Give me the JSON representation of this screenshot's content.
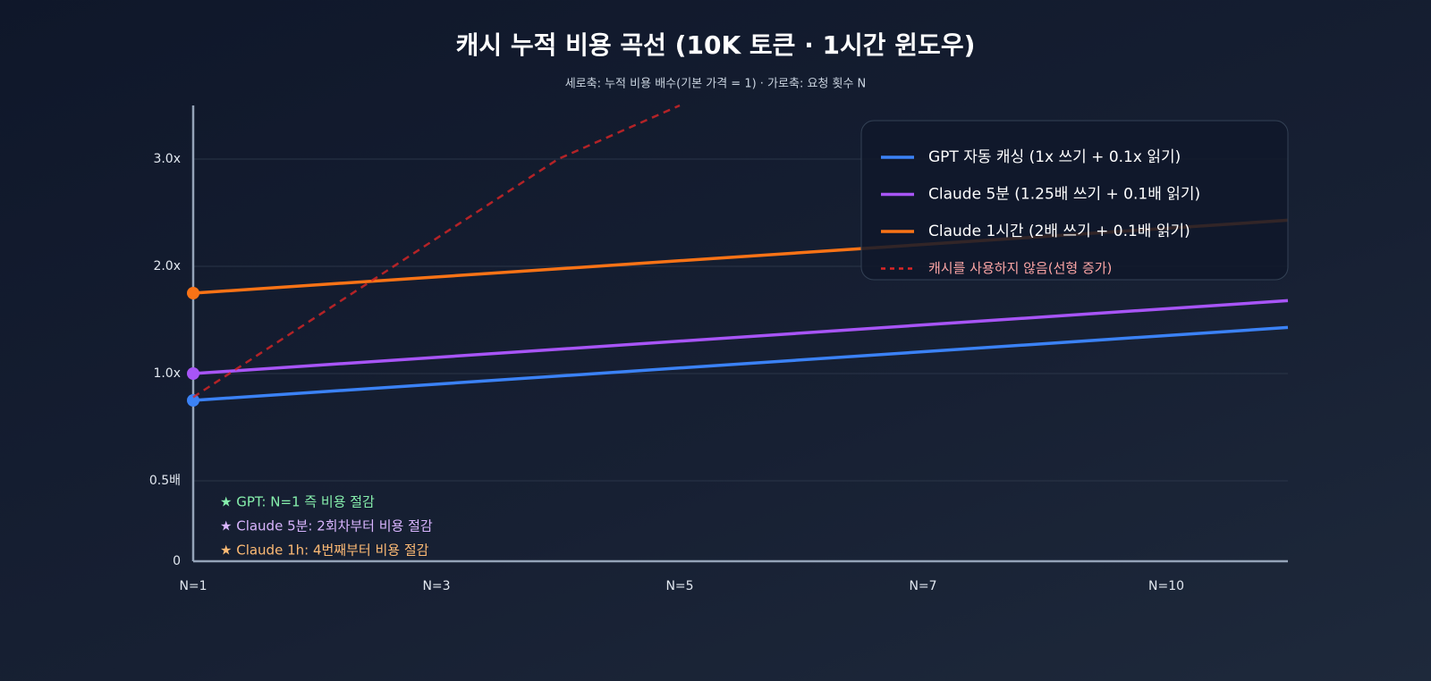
{
  "chart_data": {
    "type": "line",
    "title": "캐시 누적 비용 곡선 (10K 토큰 · 1시간 윈도우)",
    "subtitle": "세로축: 누적 비용 배수(기본 가격 = 1) · 가로축: 요청 횟수 N",
    "xlim": [
      1,
      11.5
    ],
    "xticks": [
      {
        "value": 1,
        "label": "N=1"
      },
      {
        "value": 3,
        "label": "N=3"
      },
      {
        "value": 5,
        "label": "N=5"
      },
      {
        "value": 7,
        "label": "N=7"
      },
      {
        "value": 10,
        "label": "N=10"
      }
    ],
    "ylim": [
      0,
      3.5
    ],
    "yticks": [
      0,
      {
        "value": 0.5,
        "label": "0.5배"
      },
      {
        "value": 1,
        "label": "1.0x"
      },
      {
        "value": 2,
        "label": "2.0x"
      },
      {
        "value": 3,
        "label": "3.0x"
      }
    ],
    "grid": true,
    "legend": "upper right",
    "series": [
      {
        "name": "GPT 자동 캐싱 (1x 쓰기 + 0.1x 읽기)",
        "color": "#3b82f6",
        "x": [
          1,
          11.5
        ],
        "values": [
          0.875,
          1.43
        ],
        "markers": true
      },
      {
        "name": "Claude 5분 (1.25배 쓰기 + 0.1배 읽기)",
        "color": "#a855f7",
        "x": [
          1,
          11.5
        ],
        "values": [
          1.0,
          1.68
        ],
        "markers": true
      },
      {
        "name": "Claude 1시간 (2배 쓰기 + 0.1배 읽기)",
        "color": "#f97316",
        "x": [
          1,
          11.5
        ],
        "values": [
          1.75,
          2.43
        ],
        "markers": true
      },
      {
        "name": "캐시를 사용하지 않음(선형 증가)",
        "color": "#dc2626",
        "x": [
          1,
          4,
          5
        ],
        "values": [
          0.89,
          3.0,
          3.5
        ],
        "dashed": true,
        "legend_color": "#fca5a5"
      }
    ],
    "annotations": [
      {
        "text": "★ GPT: N=1 즉 비용 절감",
        "color": "#86efac"
      },
      {
        "text": "★ Claude 5분: 2회차부터 비용 절감",
        "color": "#d8b4fe"
      },
      {
        "text": "★ Claude 1h:  4번째부터 비용 절감",
        "color": "#fdba74"
      }
    ]
  }
}
